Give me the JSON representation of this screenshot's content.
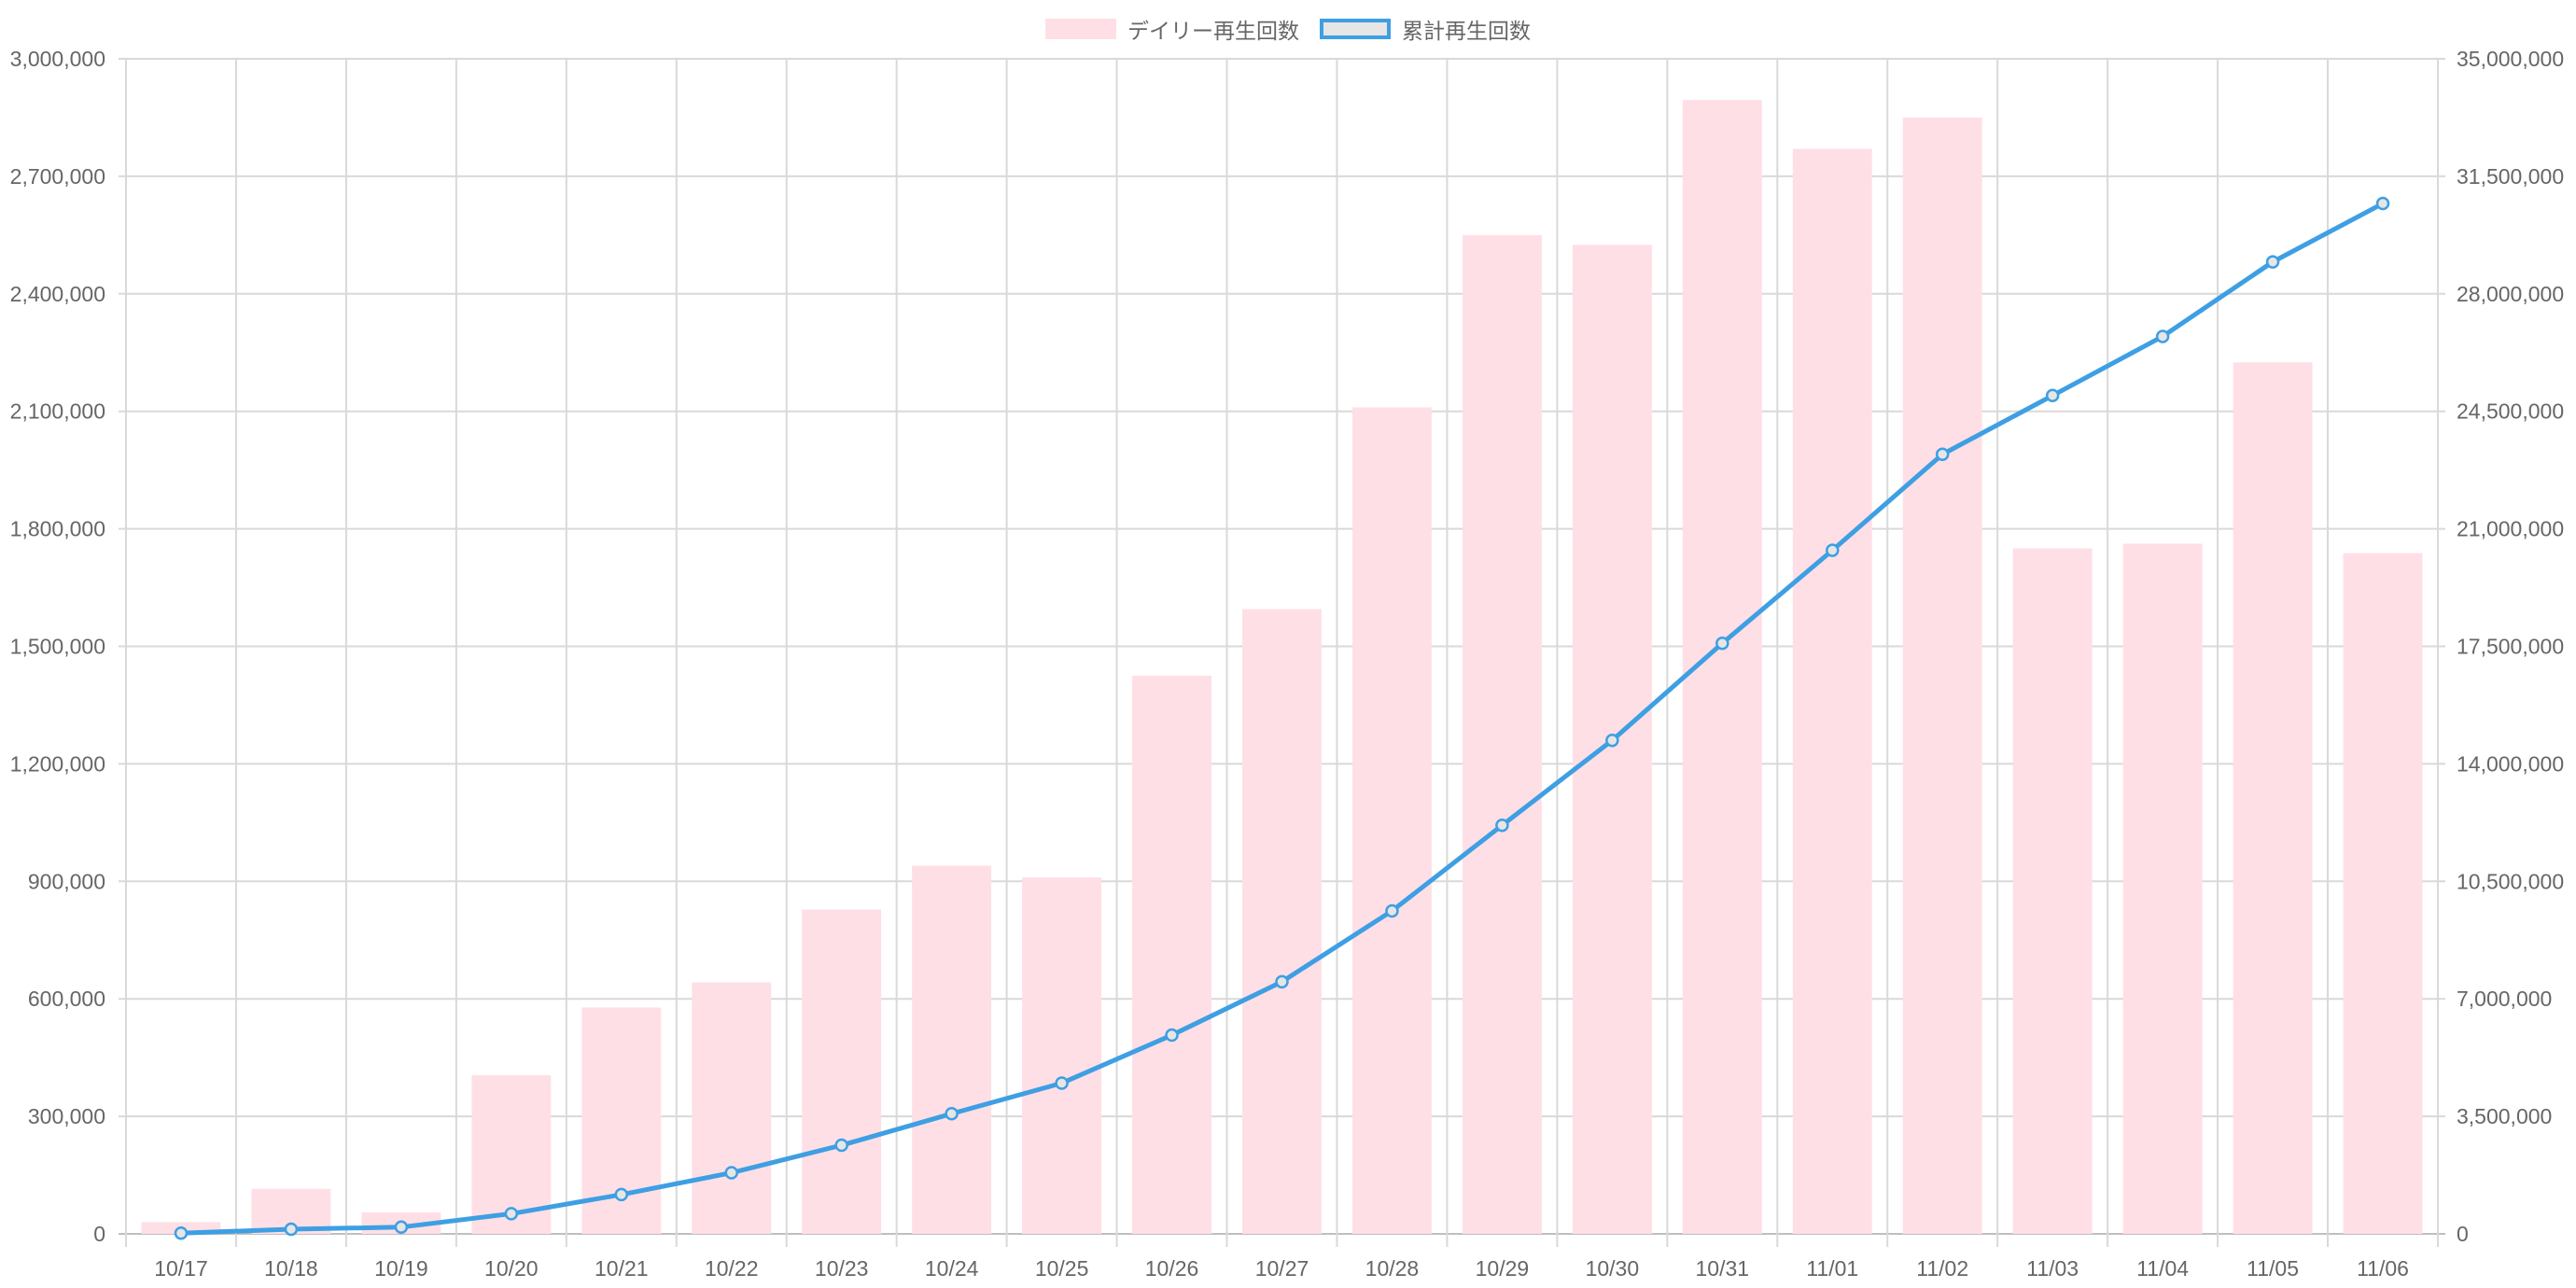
{
  "chart_data": {
    "type": "bar",
    "title": "",
    "categories": [
      "10/17",
      "10/18",
      "10/19",
      "10/20",
      "10/21",
      "10/22",
      "10/23",
      "10/24",
      "10/25",
      "10/26",
      "10/27",
      "10/28",
      "10/29",
      "10/30",
      "10/31",
      "11/01",
      "11/02",
      "11/03",
      "11/04",
      "11/05",
      "11/06"
    ],
    "series": [
      {
        "name": "デイリー再生回数",
        "type": "bar",
        "axis": "left",
        "color": "#FFDFE6",
        "values": [
          30000,
          115000,
          55000,
          405000,
          578000,
          642000,
          828000,
          940000,
          910000,
          1425000,
          1595000,
          2110000,
          2550000,
          2525000,
          2895000,
          2770000,
          2850000,
          1750000,
          1762000,
          2225000,
          1738000
        ]
      },
      {
        "name": "累計再生回数",
        "type": "line",
        "axis": "right",
        "color": "#3E9FE3",
        "values": [
          20000,
          140000,
          200000,
          600000,
          1170000,
          1820000,
          2640000,
          3580000,
          4490000,
          5920000,
          7510000,
          9620000,
          12170000,
          14700000,
          17590000,
          20360000,
          23220000,
          24970000,
          26730000,
          28950000,
          30690000
        ]
      }
    ],
    "y_left": {
      "min": 0,
      "max": 3000000,
      "ticks": [
        "0",
        "300,000",
        "600,000",
        "900,000",
        "1,200,000",
        "1,500,000",
        "1,800,000",
        "2,100,000",
        "2,400,000",
        "2,700,000",
        "3,000,000"
      ]
    },
    "y_right": {
      "min": 0,
      "max": 35000000,
      "ticks": [
        "0",
        "3,500,000",
        "7,000,000",
        "10,500,000",
        "14,000,000",
        "17,500,000",
        "21,000,000",
        "24,500,000",
        "28,000,000",
        "31,500,000",
        "35,000,000"
      ]
    },
    "legend": "top-center",
    "grid": true
  },
  "colors": {
    "grid": "#D9D9D9",
    "tick_text": "#666666"
  }
}
